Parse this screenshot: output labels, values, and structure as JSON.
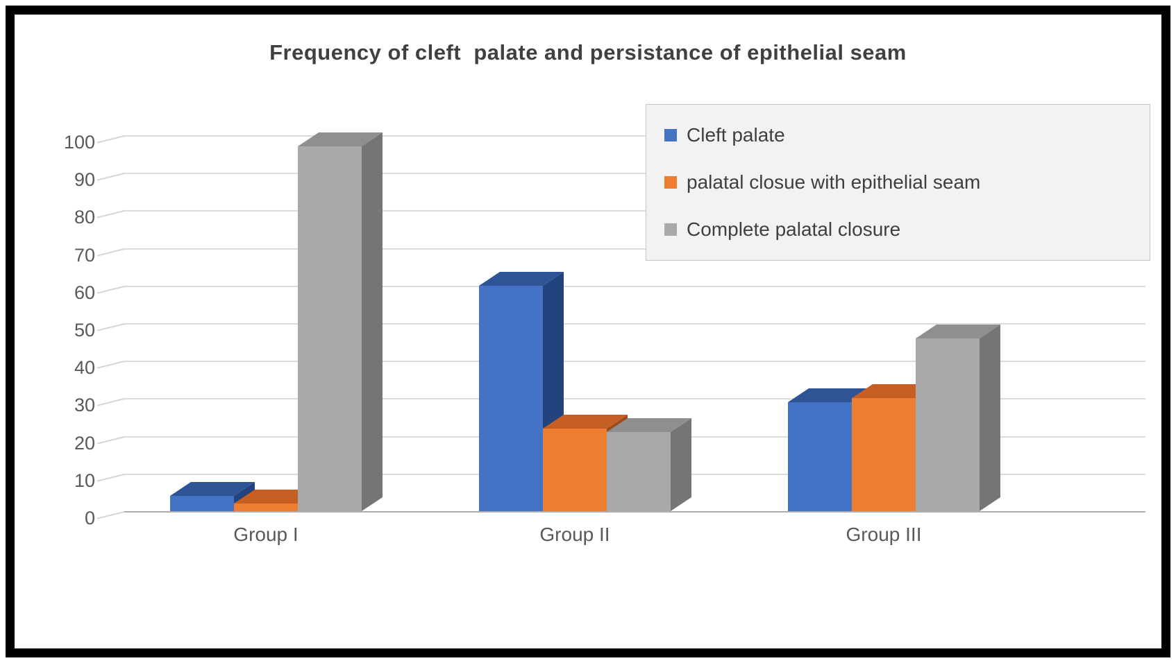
{
  "chart_data": {
    "type": "bar",
    "variant": "3d-clustered-column",
    "title": "Frequency of cleft  palate and persistance of epithelial seam",
    "categories": [
      "Group I",
      "Group II",
      "Group III"
    ],
    "series": [
      {
        "name": "Cleft palate",
        "values": [
          4,
          60,
          29
        ],
        "colors": {
          "front": "#4472C4",
          "top": "#2F5496",
          "side": "#23437E"
        }
      },
      {
        "name": "palatal closue with epithelial seam",
        "values": [
          2,
          22,
          30
        ],
        "colors": {
          "front": "#ED7D31",
          "top": "#C55F23",
          "side": "#9E4B1B"
        }
      },
      {
        "name": "Complete palatal closure",
        "values": [
          97,
          21,
          46
        ],
        "colors": {
          "front": "#A9A9A9",
          "top": "#8F8F8F",
          "side": "#757575"
        }
      }
    ],
    "xlabel": "",
    "ylabel": "",
    "ylim": [
      0,
      100
    ],
    "yticks": [
      0,
      10,
      20,
      30,
      40,
      50,
      60,
      70,
      80,
      90,
      100
    ],
    "grid": true,
    "gridline_color": "#DBDBDB",
    "legend_position": "top-right",
    "legend_background": "#F2F2F2",
    "text_color": "#595959",
    "title_color": "#404040",
    "frame_border_color": "#000000"
  }
}
